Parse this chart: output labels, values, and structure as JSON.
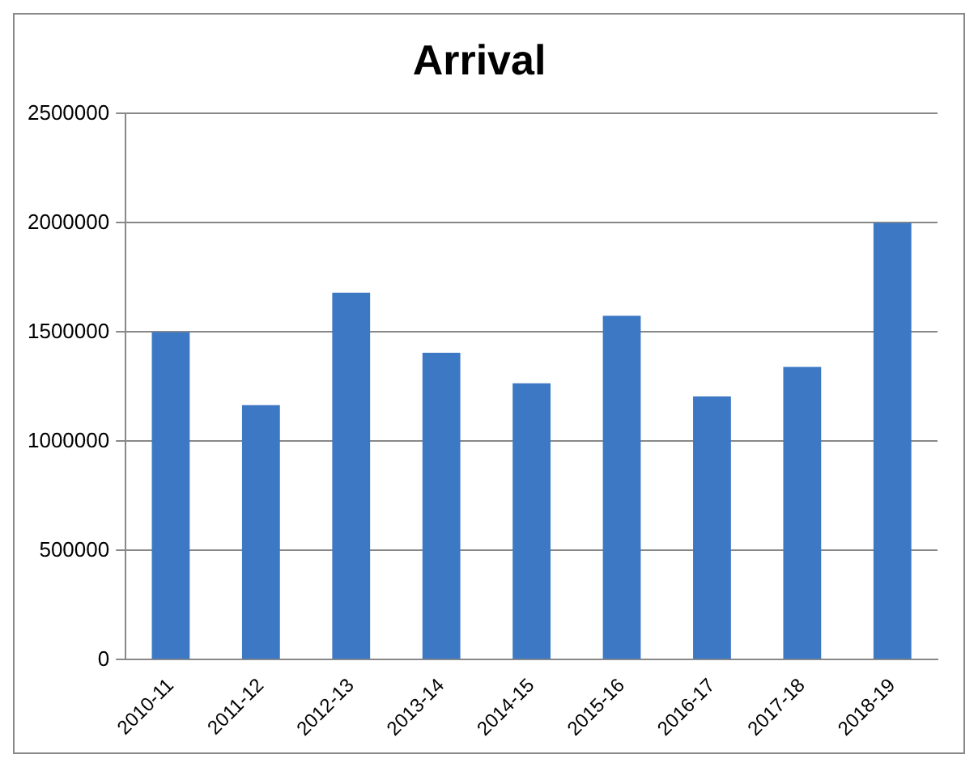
{
  "chart_data": {
    "type": "bar",
    "title": "Arrival",
    "categories": [
      "2010-11",
      "2011-12",
      "2012-13",
      "2013-14",
      "2014-15",
      "2015-16",
      "2016-17",
      "2017-18",
      "2018-19"
    ],
    "values": [
      1500000,
      1165000,
      1680000,
      1405000,
      1265000,
      1575000,
      1205000,
      1340000,
      2000000
    ],
    "color": "#3d78c4",
    "ylim": [
      0,
      2500000
    ],
    "yticks": [
      0,
      500000,
      1000000,
      1500000,
      2000000,
      2500000
    ],
    "grid": "y",
    "legend": false
  }
}
